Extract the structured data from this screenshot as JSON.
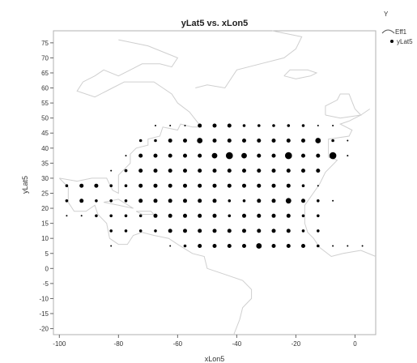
{
  "chart_data": {
    "type": "scatter",
    "title": "yLat5 vs. xLon5",
    "xlabel": "xLon5",
    "ylabel": "yLat5",
    "xlim": [
      -102,
      7
    ],
    "ylim": [
      -22,
      79
    ],
    "xticks": [
      -100,
      -80,
      -60,
      -40,
      -20,
      0
    ],
    "yticks": [
      75,
      70,
      65,
      60,
      55,
      50,
      45,
      40,
      35,
      30,
      25,
      20,
      15,
      10,
      5,
      0,
      -5,
      -10,
      -15,
      -20
    ],
    "legend": {
      "title": "Y",
      "entries": [
        "Eff1",
        "yLat5"
      ],
      "placement": "top-right"
    },
    "background": "map outline (coastlines)",
    "marker_color": "#000000",
    "points": [
      [
        -52.5,
        47.5,
        3
      ],
      [
        -47.5,
        47.5,
        3
      ],
      [
        -42.5,
        47.5,
        3
      ],
      [
        -37.5,
        47.5,
        2
      ],
      [
        -32.5,
        47.5,
        2
      ],
      [
        -27.5,
        47.5,
        2
      ],
      [
        -22.5,
        47.5,
        2
      ],
      [
        -17.5,
        47.5,
        2
      ],
      [
        -12.5,
        47.5,
        1
      ],
      [
        -7.5,
        47.5,
        1
      ],
      [
        -62.5,
        47.5,
        1
      ],
      [
        -57.5,
        47.5,
        1
      ],
      [
        -67.5,
        47.5,
        1
      ],
      [
        -72.5,
        42.5,
        2
      ],
      [
        -67.5,
        42.5,
        2
      ],
      [
        -62.5,
        42.5,
        3
      ],
      [
        -57.5,
        42.5,
        3
      ],
      [
        -52.5,
        42.5,
        4
      ],
      [
        -47.5,
        42.5,
        3
      ],
      [
        -42.5,
        42.5,
        3
      ],
      [
        -37.5,
        42.5,
        3
      ],
      [
        -32.5,
        42.5,
        3
      ],
      [
        -27.5,
        42.5,
        3
      ],
      [
        -22.5,
        42.5,
        3
      ],
      [
        -17.5,
        42.5,
        3
      ],
      [
        -12.5,
        42.5,
        4
      ],
      [
        -7.5,
        42.5,
        2
      ],
      [
        -2.5,
        42.5,
        1
      ],
      [
        -77.5,
        37.5,
        1
      ],
      [
        -72.5,
        37.5,
        3
      ],
      [
        -67.5,
        37.5,
        3
      ],
      [
        -62.5,
        37.5,
        3
      ],
      [
        -57.5,
        37.5,
        3
      ],
      [
        -52.5,
        37.5,
        3
      ],
      [
        -47.5,
        37.5,
        4
      ],
      [
        -42.5,
        37.5,
        5
      ],
      [
        -37.5,
        37.5,
        4
      ],
      [
        -32.5,
        37.5,
        3
      ],
      [
        -27.5,
        37.5,
        3
      ],
      [
        -22.5,
        37.5,
        5
      ],
      [
        -17.5,
        37.5,
        3
      ],
      [
        -12.5,
        37.5,
        3
      ],
      [
        -7.5,
        37.5,
        5
      ],
      [
        -2.5,
        37.5,
        1
      ],
      [
        -77.5,
        32.5,
        2
      ],
      [
        -72.5,
        32.5,
        3
      ],
      [
        -67.5,
        32.5,
        3
      ],
      [
        -62.5,
        32.5,
        3
      ],
      [
        -57.5,
        32.5,
        3
      ],
      [
        -52.5,
        32.5,
        3
      ],
      [
        -47.5,
        32.5,
        3
      ],
      [
        -42.5,
        32.5,
        3
      ],
      [
        -37.5,
        32.5,
        3
      ],
      [
        -32.5,
        32.5,
        3
      ],
      [
        -27.5,
        32.5,
        3
      ],
      [
        -22.5,
        32.5,
        3
      ],
      [
        -17.5,
        32.5,
        3
      ],
      [
        -12.5,
        32.5,
        3
      ],
      [
        -82.5,
        27.5,
        2
      ],
      [
        -77.5,
        27.5,
        2
      ],
      [
        -72.5,
        27.5,
        3
      ],
      [
        -67.5,
        27.5,
        3
      ],
      [
        -62.5,
        27.5,
        3
      ],
      [
        -57.5,
        27.5,
        3
      ],
      [
        -52.5,
        27.5,
        3
      ],
      [
        -47.5,
        27.5,
        3
      ],
      [
        -42.5,
        27.5,
        3
      ],
      [
        -37.5,
        27.5,
        3
      ],
      [
        -32.5,
        27.5,
        3
      ],
      [
        -27.5,
        27.5,
        3
      ],
      [
        -22.5,
        27.5,
        3
      ],
      [
        -17.5,
        27.5,
        2
      ],
      [
        -12.5,
        27.5,
        1
      ],
      [
        -97.5,
        22.5,
        2
      ],
      [
        -92.5,
        22.5,
        3
      ],
      [
        -87.5,
        22.5,
        2
      ],
      [
        -82.5,
        22.5,
        2
      ],
      [
        -77.5,
        22.5,
        2
      ],
      [
        -72.5,
        22.5,
        3
      ],
      [
        -67.5,
        22.5,
        3
      ],
      [
        -62.5,
        22.5,
        3
      ],
      [
        -57.5,
        22.5,
        3
      ],
      [
        -52.5,
        22.5,
        3
      ],
      [
        -47.5,
        22.5,
        3
      ],
      [
        -42.5,
        22.5,
        2
      ],
      [
        -37.5,
        22.5,
        2
      ],
      [
        -32.5,
        22.5,
        3
      ],
      [
        -27.5,
        22.5,
        3
      ],
      [
        -22.5,
        22.5,
        4
      ],
      [
        -17.5,
        22.5,
        3
      ],
      [
        -12.5,
        22.5,
        2
      ],
      [
        -7.5,
        22.5,
        1
      ],
      [
        -97.5,
        27.5,
        2
      ],
      [
        -92.5,
        27.5,
        3
      ],
      [
        -87.5,
        27.5,
        3
      ],
      [
        -97.5,
        17.5,
        1
      ],
      [
        -92.5,
        17.5,
        1
      ],
      [
        -87.5,
        17.5,
        2
      ],
      [
        -82.5,
        17.5,
        2
      ],
      [
        -77.5,
        17.5,
        2
      ],
      [
        -72.5,
        17.5,
        2
      ],
      [
        -67.5,
        17.5,
        3
      ],
      [
        -62.5,
        17.5,
        3
      ],
      [
        -57.5,
        17.5,
        3
      ],
      [
        -52.5,
        17.5,
        3
      ],
      [
        -47.5,
        17.5,
        3
      ],
      [
        -42.5,
        17.5,
        2
      ],
      [
        -37.5,
        17.5,
        3
      ],
      [
        -32.5,
        17.5,
        3
      ],
      [
        -27.5,
        17.5,
        3
      ],
      [
        -22.5,
        17.5,
        3
      ],
      [
        -17.5,
        17.5,
        2
      ],
      [
        -12.5,
        17.5,
        2
      ],
      [
        -82.5,
        12.5,
        2
      ],
      [
        -77.5,
        12.5,
        2
      ],
      [
        -72.5,
        12.5,
        2
      ],
      [
        -67.5,
        12.5,
        2
      ],
      [
        -62.5,
        12.5,
        3
      ],
      [
        -57.5,
        12.5,
        3
      ],
      [
        -52.5,
        12.5,
        3
      ],
      [
        -47.5,
        12.5,
        3
      ],
      [
        -42.5,
        12.5,
        3
      ],
      [
        -37.5,
        12.5,
        3
      ],
      [
        -32.5,
        12.5,
        3
      ],
      [
        -27.5,
        12.5,
        3
      ],
      [
        -22.5,
        12.5,
        3
      ],
      [
        -17.5,
        12.5,
        2
      ],
      [
        -12.5,
        12.5,
        2
      ],
      [
        -82.5,
        7.5,
        1
      ],
      [
        -62.5,
        7.5,
        1
      ],
      [
        -57.5,
        7.5,
        2
      ],
      [
        -52.5,
        7.5,
        3
      ],
      [
        -47.5,
        7.5,
        3
      ],
      [
        -42.5,
        7.5,
        3
      ],
      [
        -37.5,
        7.5,
        3
      ],
      [
        -32.5,
        7.5,
        4
      ],
      [
        -27.5,
        7.5,
        3
      ],
      [
        -22.5,
        7.5,
        3
      ],
      [
        -17.5,
        7.5,
        3
      ],
      [
        -12.5,
        7.5,
        2
      ],
      [
        -7.5,
        7.5,
        1
      ],
      [
        -2.5,
        7.5,
        1
      ],
      [
        2.5,
        7.5,
        1
      ],
      [
        -77.5,
        32.5,
        2
      ],
      [
        -82.5,
        32.5,
        1
      ]
    ]
  }
}
